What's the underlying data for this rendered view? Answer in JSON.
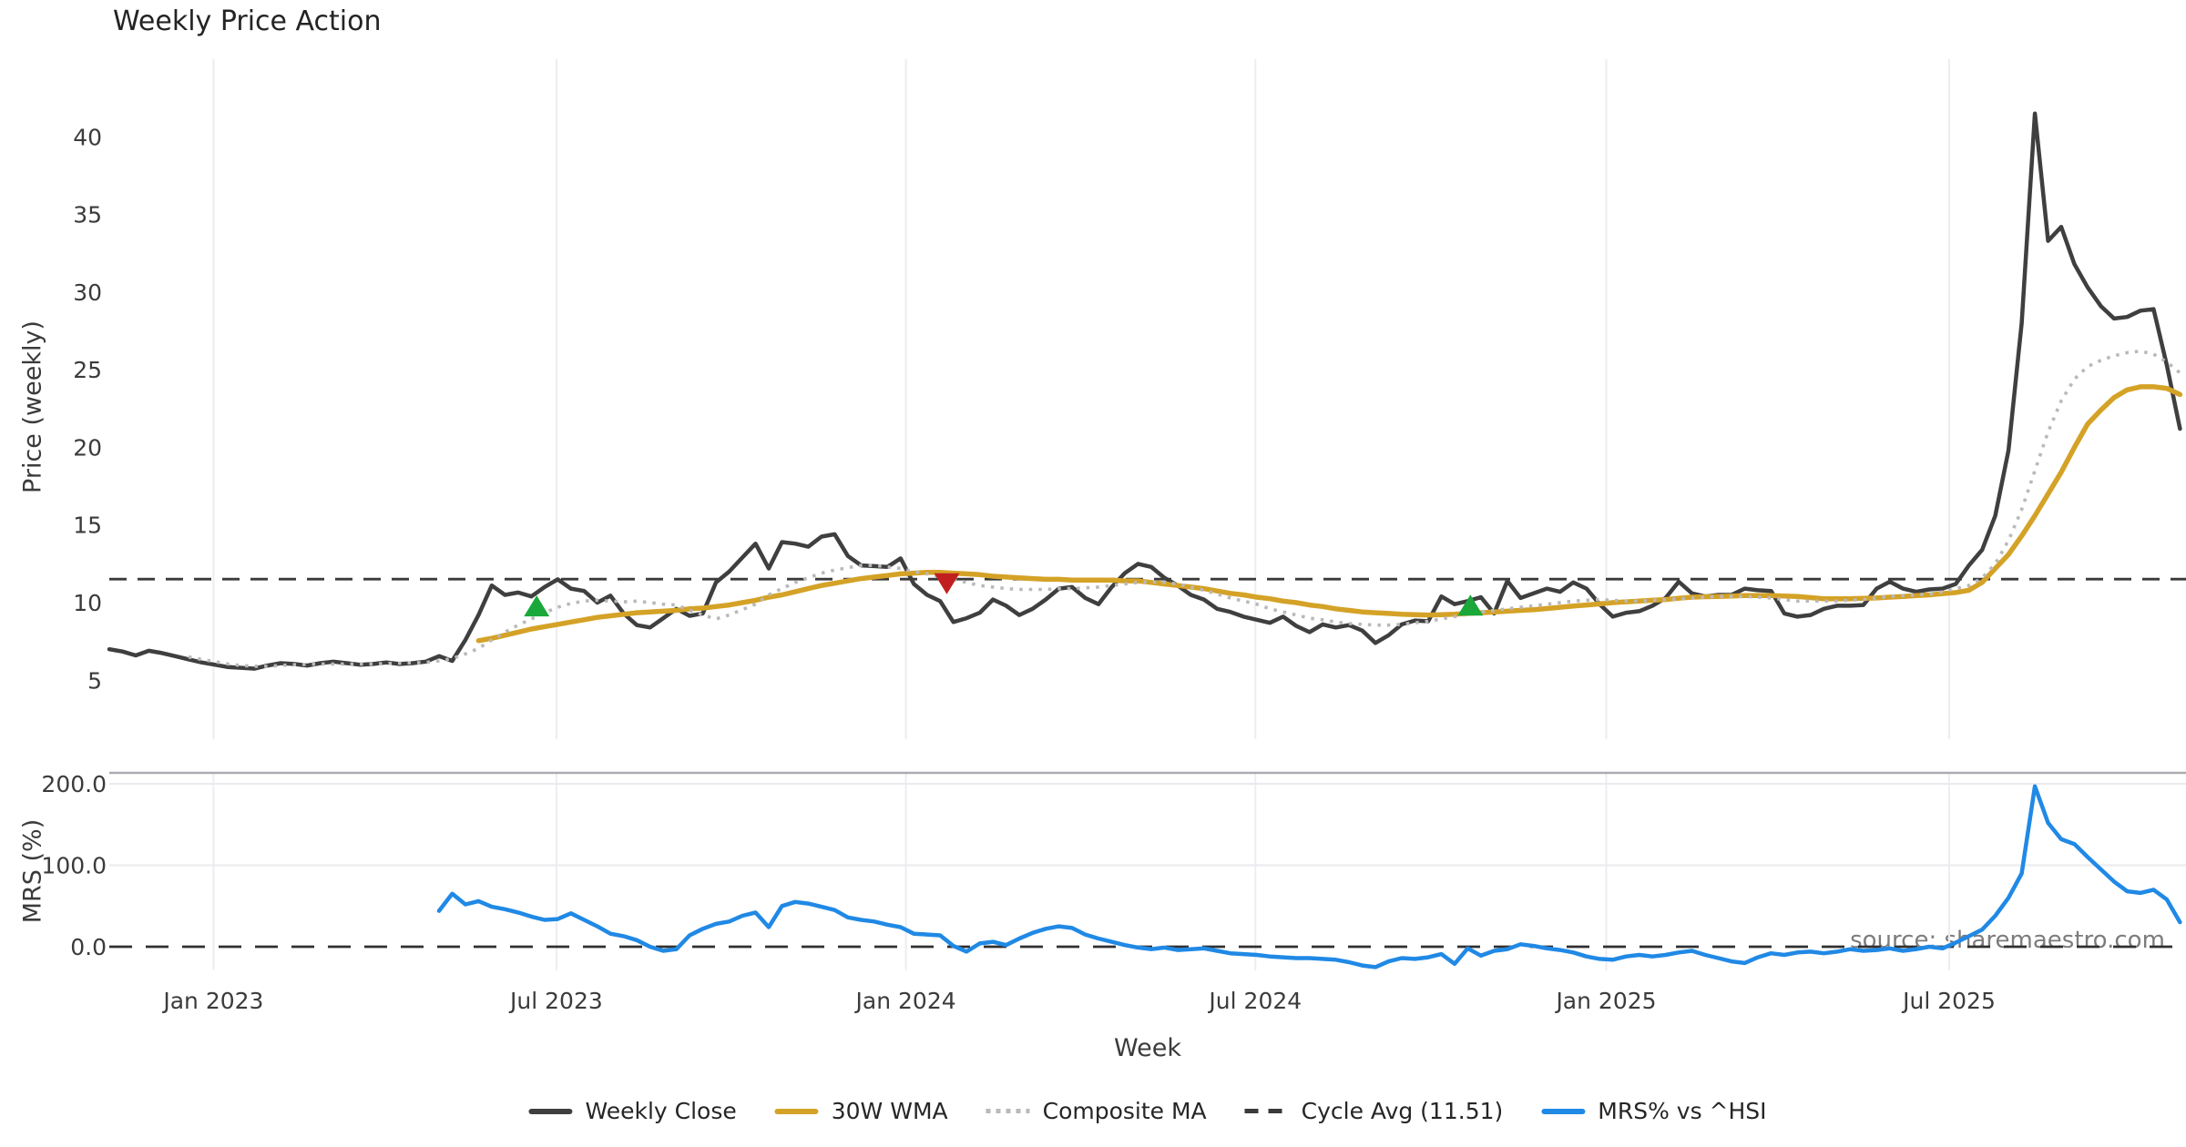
{
  "title": "Weekly Price Action",
  "watermark": "source: sharemaestro.com",
  "axes": {
    "price_label": "Price (weekly)",
    "mrs_label": "MRS (%)",
    "x_label": "Week",
    "price_ticks": [
      5,
      10,
      15,
      20,
      25,
      30,
      35,
      40
    ],
    "mrs_ticks": [
      {
        "label": "0.0",
        "value": 0
      },
      {
        "label": "100.0",
        "value": 100
      },
      {
        "label": "200.0",
        "value": 200
      }
    ],
    "x_ticks": [
      {
        "label": "Jan 2023",
        "week": 7.9
      },
      {
        "label": "Jul 2023",
        "week": 33.9
      },
      {
        "label": "Jan 2024",
        "week": 60.4
      },
      {
        "label": "Jul 2024",
        "week": 86.9
      },
      {
        "label": "Jan 2025",
        "week": 113.5
      },
      {
        "label": "Jul 2025",
        "week": 139.5
      }
    ]
  },
  "legend": [
    {
      "key": "close",
      "label": "Weekly Close",
      "style": "solid",
      "color": "#3f3f3f"
    },
    {
      "key": "wma",
      "label": "30W WMA",
      "style": "solid",
      "color": "#d4a226"
    },
    {
      "key": "composite",
      "label": "Composite MA",
      "style": "dotted",
      "color": "#b9b9b9"
    },
    {
      "key": "cycle",
      "label": "Cycle Avg (11.51)",
      "style": "dashed",
      "color": "#3a3a3a"
    },
    {
      "key": "mrs",
      "label": "MRS% vs ^HSI",
      "style": "solid",
      "color": "#2089e5"
    }
  ],
  "chart_data": {
    "type": "line",
    "title": "Weekly Price Action",
    "xlabel": "Week",
    "x_unit": "week_index",
    "weeks_total": 158,
    "grid": "vertical-light",
    "legend_position": "bottom-center",
    "panels": [
      {
        "name": "price",
        "ylabel": "Price (weekly)",
        "ylim": [
          1.2,
          45.0
        ],
        "reference": {
          "name": "Cycle Avg (11.51)",
          "value": 11.51,
          "color": "#3a3a3a"
        },
        "markers": [
          {
            "shape": "triangle-up",
            "color": "#1aa83a",
            "week": 32.4,
            "value": 9.7
          },
          {
            "shape": "triangle-down",
            "color": "#c11f1f",
            "week": 63.5,
            "value": 11.3
          },
          {
            "shape": "triangle-up",
            "color": "#1aa83a",
            "week": 103.2,
            "value": 9.75
          }
        ],
        "series": [
          {
            "name": "Weekly Close",
            "color": "#3f3f3f",
            "width": 4.5,
            "style": "solid",
            "start_week": 0,
            "values": [
              7.0,
              6.85,
              6.6,
              6.9,
              6.75,
              6.55,
              6.35,
              6.15,
              6.0,
              5.85,
              5.8,
              5.75,
              5.95,
              6.1,
              6.05,
              5.95,
              6.1,
              6.2,
              6.1,
              6.0,
              6.05,
              6.15,
              6.05,
              6.1,
              6.2,
              6.55,
              6.25,
              7.6,
              9.2,
              11.1,
              10.5,
              10.65,
              10.4,
              11.0,
              11.5,
              10.9,
              10.75,
              10.0,
              10.45,
              9.3,
              8.55,
              8.4,
              9.0,
              9.6,
              9.15,
              9.3,
              11.3,
              12.0,
              12.9,
              13.8,
              12.2,
              13.9,
              13.8,
              13.6,
              14.25,
              14.4,
              13.0,
              12.4,
              12.35,
              12.3,
              12.85,
              11.2,
              10.5,
              10.1,
              8.75,
              9.0,
              9.35,
              10.2,
              9.8,
              9.2,
              9.6,
              10.2,
              10.9,
              11.0,
              10.3,
              9.9,
              11.0,
              11.9,
              12.5,
              12.3,
              11.6,
              11.1,
              10.5,
              10.2,
              9.6,
              9.4,
              9.1,
              8.9,
              8.7,
              9.1,
              8.5,
              8.1,
              8.6,
              8.4,
              8.55,
              8.2,
              7.4,
              7.9,
              8.6,
              8.85,
              8.8,
              10.4,
              9.9,
              10.1,
              10.35,
              9.3,
              11.4,
              10.3,
              10.6,
              10.9,
              10.7,
              11.3,
              10.9,
              9.9,
              9.1,
              9.35,
              9.45,
              9.8,
              10.3,
              11.35,
              10.6,
              10.4,
              10.5,
              10.5,
              10.9,
              10.8,
              10.75,
              9.3,
              9.1,
              9.2,
              9.6,
              9.8,
              9.8,
              9.85,
              10.9,
              11.35,
              10.9,
              10.7,
              10.85,
              10.9,
              11.2,
              12.4,
              13.4,
              15.6,
              19.8,
              28.0,
              41.5,
              33.3,
              34.2,
              31.8,
              30.3,
              29.1,
              28.3,
              28.4,
              28.8,
              28.9,
              25.3,
              21.2
            ]
          },
          {
            "name": "30W WMA",
            "color": "#d4a226",
            "width": 5.5,
            "style": "solid",
            "start_week": 28,
            "values": [
              7.55,
              7.7,
              7.9,
              8.1,
              8.3,
              8.45,
              8.6,
              8.75,
              8.9,
              9.05,
              9.15,
              9.25,
              9.35,
              9.4,
              9.45,
              9.5,
              9.6,
              9.65,
              9.75,
              9.85,
              10.0,
              10.15,
              10.35,
              10.5,
              10.7,
              10.9,
              11.1,
              11.25,
              11.4,
              11.55,
              11.65,
              11.75,
              11.85,
              11.9,
              11.95,
              11.95,
              11.9,
              11.85,
              11.8,
              11.7,
              11.65,
              11.6,
              11.55,
              11.5,
              11.5,
              11.45,
              11.45,
              11.45,
              11.45,
              11.4,
              11.4,
              11.3,
              11.2,
              11.1,
              11.0,
              10.9,
              10.75,
              10.6,
              10.5,
              10.35,
              10.25,
              10.1,
              10.0,
              9.85,
              9.75,
              9.6,
              9.5,
              9.4,
              9.35,
              9.3,
              9.25,
              9.22,
              9.2,
              9.22,
              9.25,
              9.3,
              9.35,
              9.4,
              9.45,
              9.5,
              9.55,
              9.62,
              9.7,
              9.78,
              9.85,
              9.92,
              10.0,
              10.05,
              10.1,
              10.15,
              10.2,
              10.28,
              10.35,
              10.38,
              10.4,
              10.42,
              10.45,
              10.45,
              10.45,
              10.42,
              10.4,
              10.32,
              10.25,
              10.25,
              10.25,
              10.28,
              10.3,
              10.35,
              10.4,
              10.45,
              10.5,
              10.58,
              10.65,
              10.8,
              11.3,
              12.2,
              13.1,
              14.3,
              15.6,
              17.0,
              18.4,
              20.0,
              21.5,
              22.4,
              23.2,
              23.7,
              23.9,
              23.9,
              23.8,
              23.4
            ]
          },
          {
            "name": "Composite MA",
            "color": "#b9b9b9",
            "width": 3.6,
            "style": "dotted",
            "start_week": 6,
            "values": [
              6.5,
              6.35,
              6.2,
              6.05,
              5.95,
              5.9,
              5.9,
              5.95,
              6.0,
              6.02,
              6.05,
              6.05,
              6.05,
              6.05,
              6.05,
              6.08,
              6.1,
              6.12,
              6.15,
              6.25,
              6.4,
              6.7,
              7.05,
              7.6,
              8.1,
              8.55,
              8.95,
              9.35,
              9.7,
              9.95,
              10.1,
              10.15,
              10.1,
              10.05,
              10.1,
              10.0,
              9.9,
              9.85,
              9.5,
              9.2,
              8.95,
              9.2,
              9.55,
              9.9,
              10.5,
              10.9,
              11.3,
              11.6,
              11.9,
              12.1,
              12.25,
              12.4,
              12.4,
              12.3,
              12.2,
              12.0,
              11.85,
              11.7,
              11.5,
              11.3,
              11.1,
              11.0,
              10.9,
              10.85,
              10.85,
              10.85,
              10.9,
              10.9,
              10.95,
              11.0,
              11.1,
              11.2,
              11.3,
              11.35,
              11.3,
              11.2,
              11.0,
              10.8,
              10.55,
              10.3,
              10.1,
              9.9,
              9.6,
              9.4,
              9.2,
              9.0,
              8.9,
              8.75,
              8.65,
              8.6,
              8.55,
              8.55,
              8.6,
              8.7,
              8.8,
              8.95,
              9.1,
              9.25,
              9.4,
              9.5,
              9.6,
              9.7,
              9.8,
              9.9,
              10.0,
              10.1,
              10.15,
              10.2,
              10.15,
              10.1,
              10.1,
              10.15,
              10.2,
              10.25,
              10.3,
              10.35,
              10.4,
              10.4,
              10.4,
              10.35,
              10.3,
              10.2,
              10.1,
              10.1,
              10.1,
              10.1,
              10.15,
              10.2,
              10.3,
              10.4,
              10.45,
              10.5,
              10.55,
              10.7,
              10.9,
              11.1,
              11.6,
              12.5,
              14.0,
              16.0,
              18.5,
              21.0,
              23.0,
              24.4,
              25.2,
              25.6,
              25.9,
              26.1,
              26.2,
              26.0,
              25.5,
              24.8
            ]
          }
        ]
      },
      {
        "name": "mrs",
        "ylabel": "MRS (%)",
        "ylim": [
          -29,
          212
        ],
        "reference": {
          "name": "zero line",
          "value": 0,
          "color": "#303030"
        },
        "series": [
          {
            "name": "MRS% vs ^HSI",
            "color": "#2089e5",
            "width": 4.5,
            "style": "solid",
            "start_week": 25,
            "values": [
              44,
              65,
              52,
              56,
              49,
              46,
              42,
              37,
              33,
              34,
              41,
              33,
              25,
              16,
              13,
              8,
              0,
              -5,
              -3,
              14,
              22,
              28,
              31,
              38,
              42,
              24,
              50,
              55,
              53,
              49,
              45,
              36,
              33,
              31,
              27,
              24,
              16,
              15,
              14,
              1,
              -6,
              4,
              6,
              2,
              10,
              17,
              22,
              25,
              23,
              15,
              10,
              6,
              2,
              -1,
              -3,
              -1,
              -4,
              -3,
              -2,
              -5,
              -8,
              -9,
              -10,
              -12,
              -13,
              -14,
              -14,
              -15,
              -16,
              -19,
              -23,
              -25,
              -18,
              -14,
              -15,
              -13,
              -9,
              -21,
              -2,
              -11,
              -5,
              -3,
              3,
              1,
              -2,
              -4,
              -7,
              -12,
              -15,
              -16,
              -12,
              -10,
              -12,
              -10,
              -7,
              -5,
              -10,
              -14,
              -18,
              -20,
              -13,
              -8,
              -10,
              -7,
              -6,
              -8,
              -6,
              -3,
              -5,
              -4,
              -2,
              -5,
              -3,
              0,
              -2,
              5,
              13,
              21,
              38,
              60,
              90,
              197,
              152,
              132,
              126,
              110,
              95,
              80,
              68,
              66,
              70,
              58,
              30
            ]
          }
        ]
      }
    ]
  }
}
